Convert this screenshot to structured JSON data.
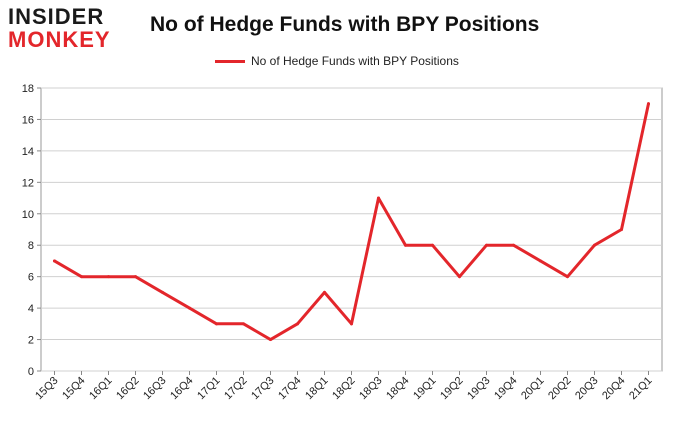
{
  "logo": {
    "line1": "INSIDER",
    "line2": "MONKEY"
  },
  "chart_data": {
    "type": "line",
    "title": "No of Hedge Funds with BPY Positions",
    "xlabel": "",
    "ylabel": "",
    "categories": [
      "15Q3",
      "15Q4",
      "16Q1",
      "16Q2",
      "16Q3",
      "16Q4",
      "17Q1",
      "17Q2",
      "17Q3",
      "17Q4",
      "18Q1",
      "18Q2",
      "18Q3",
      "18Q4",
      "19Q1",
      "19Q2",
      "19Q3",
      "19Q4",
      "20Q1",
      "20Q2",
      "20Q3",
      "20Q4",
      "21Q1"
    ],
    "series": [
      {
        "name": "No of Hedge Funds with BPY Positions",
        "color": "#e3262b",
        "values": [
          7,
          6,
          6,
          6,
          5,
          4,
          3,
          3,
          2,
          3,
          5,
          3,
          11,
          8,
          8,
          6,
          8,
          8,
          7,
          6,
          8,
          9,
          17
        ]
      }
    ],
    "ylim": [
      0,
      18
    ],
    "yticks": [
      0,
      2,
      4,
      6,
      8,
      10,
      12,
      14,
      16,
      18
    ],
    "grid": true,
    "legend_position": "top-center"
  }
}
